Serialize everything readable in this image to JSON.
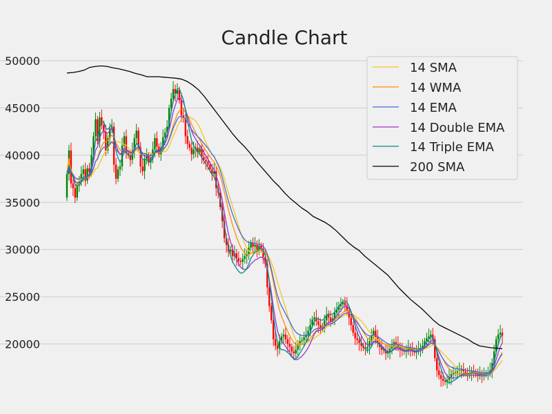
{
  "chart_data": {
    "type": "candlestick",
    "title": "Candle Chart",
    "xlabel": "",
    "ylabel": "",
    "ylim": [
      13500,
      52000
    ],
    "y_ticks": [
      20000,
      25000,
      30000,
      35000,
      40000,
      45000,
      50000
    ],
    "grid": "horizontal",
    "legend_position": "top-right",
    "colors": {
      "background": "#f0f0f0",
      "grid": "#cbcbcb",
      "up": "#008000",
      "down": "#ff0000",
      "sma14": "#f5c518",
      "wma14": "#ff8c00",
      "ema14": "#4169e1",
      "dema14": "#9932cc",
      "tema14": "#008b8b",
      "sma200": "#000000"
    },
    "close": [
      38000,
      40500,
      37000,
      36500,
      35500,
      36800,
      37200,
      38000,
      38500,
      37300,
      38600,
      38200,
      40000,
      42000,
      43800,
      41500,
      44000,
      43200,
      42500,
      40500,
      41800,
      42800,
      43000,
      39000,
      37500,
      38500,
      38800,
      41000,
      42000,
      40200,
      40000,
      39500,
      40500,
      41800,
      42600,
      40800,
      38800,
      38300,
      39600,
      40000,
      39200,
      39600,
      40600,
      41800,
      40900,
      40100,
      40800,
      41900,
      42400,
      43000,
      45000,
      46000,
      47000,
      46500,
      46900,
      45800,
      44200,
      43900,
      42000,
      41200,
      40800,
      40100,
      40600,
      40800,
      40300,
      40700,
      39800,
      39500,
      39300,
      39000,
      38500,
      38000,
      38300,
      36500,
      36000,
      34500,
      33000,
      31200,
      30500,
      29800,
      30000,
      29300,
      29600,
      29100,
      28800,
      28700,
      29000,
      29300,
      29500,
      30200,
      30700,
      30300,
      30500,
      30000,
      30400,
      30100,
      29200,
      28500,
      26000,
      24000,
      22500,
      20500,
      19800,
      19500,
      20300,
      20800,
      21000,
      20500,
      20000,
      19700,
      19200,
      19000,
      19400,
      19900,
      20300,
      20400,
      20700,
      21000,
      21400,
      22000,
      22600,
      22800,
      22400,
      22000,
      21600,
      21900,
      22500,
      23100,
      22800,
      22400,
      22700,
      23300,
      23600,
      24000,
      24200,
      24400,
      24100,
      23500,
      22800,
      22000,
      21200,
      20600,
      20400,
      20100,
      19800,
      19600,
      19500,
      19700,
      20300,
      20900,
      21400,
      20700,
      20100,
      19700,
      19400,
      19300,
      19000,
      19200,
      19500,
      19800,
      20200,
      20000,
      19700,
      19400,
      19300,
      19200,
      19300,
      19600,
      19500,
      19300,
      19100,
      19300,
      19500,
      19600,
      19800,
      20300,
      20600,
      20800,
      21000,
      20500,
      18500,
      17200,
      16700,
      16300,
      16100,
      16000,
      16200,
      16500,
      16800,
      16900,
      17000,
      17100,
      17200,
      17300,
      17100,
      16900,
      16800,
      16900,
      17100,
      17000,
      16800,
      16700,
      16800,
      16700,
      16800,
      16900,
      17000,
      17200,
      18000,
      19200,
      20500,
      21000,
      21200,
      20900
    ],
    "series": [
      {
        "name": "14 SMA",
        "color": "#f5c518"
      },
      {
        "name": "14 WMA",
        "color": "#ff8c00"
      },
      {
        "name": "14 EMA",
        "color": "#4169e1"
      },
      {
        "name": "14 Double EMA",
        "color": "#9932cc"
      },
      {
        "name": "14 Triple EMA",
        "color": "#008b8b"
      },
      {
        "name": "200 SMA",
        "color": "#000000"
      }
    ],
    "sma200": [
      48700,
      48750,
      48850,
      49000,
      49300,
      49400,
      49450,
      49400,
      49250,
      49150,
      49000,
      48850,
      48650,
      48500,
      48300,
      48300,
      48300,
      48250,
      48200,
      48150,
      48050,
      47800,
      47400,
      46900,
      46200,
      45400,
      44600,
      43800,
      43000,
      42200,
      41500,
      40900,
      40200,
      39400,
      38700,
      38000,
      37300,
      36700,
      36000,
      35400,
      34900,
      34400,
      34000,
      33500,
      33200,
      32900,
      32500,
      32000,
      31400,
      30800,
      30300,
      29900,
      29300,
      28800,
      28300,
      27800,
      27300,
      26600,
      25900,
      25300,
      24700,
      24200,
      23700,
      23100,
      22500,
      22000,
      21700,
      21400,
      21100,
      20800,
      20500,
      20100,
      19800,
      19700,
      19600,
      19550,
      19500
    ]
  }
}
